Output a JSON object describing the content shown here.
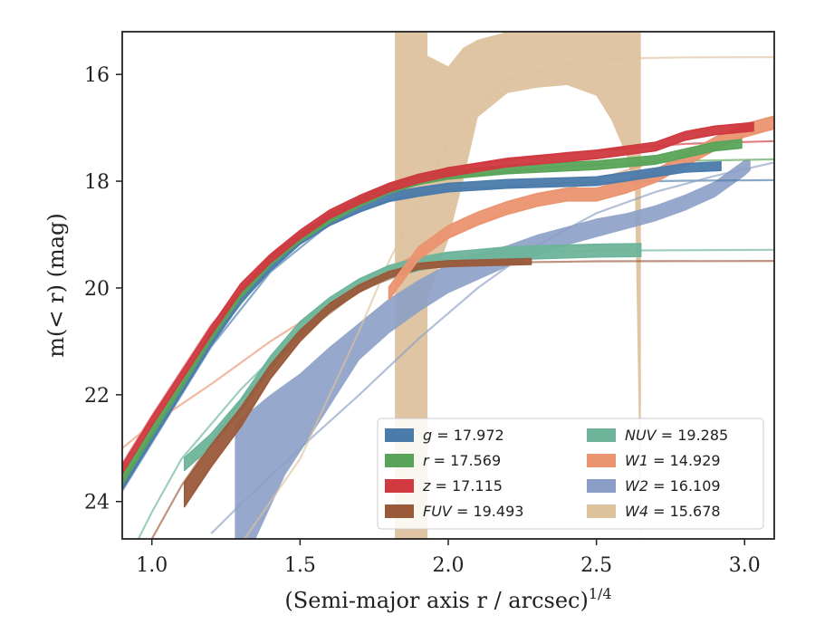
{
  "chart_data": {
    "type": "line",
    "xlabel": "(Semi-major axis r / arcsec)",
    "xlabel_superscript": "1/4",
    "ylabel": "m(< r) (mag)",
    "xlim": [
      0.9,
      3.1
    ],
    "ylim": [
      24.7,
      15.2
    ],
    "y_inverted": true,
    "xticks": [
      1.0,
      1.5,
      2.0,
      2.5,
      3.0
    ],
    "xtick_labels": [
      "1.0",
      "1.5",
      "2.0",
      "2.5",
      "3.0"
    ],
    "yticks": [
      16,
      18,
      20,
      22,
      24
    ],
    "ytick_labels": [
      "16",
      "18",
      "20",
      "22",
      "24"
    ],
    "grid": false,
    "legend_placement": "lower-right",
    "series": [
      {
        "key": "g",
        "name": "g",
        "value": "17.972",
        "color": "#4a7bab",
        "data": [
          [
            0.9,
            23.7
          ],
          [
            1.0,
            22.8
          ],
          [
            1.1,
            21.9
          ],
          [
            1.2,
            21.0
          ],
          [
            1.3,
            20.2
          ],
          [
            1.4,
            19.6
          ],
          [
            1.5,
            19.1
          ],
          [
            1.6,
            18.75
          ],
          [
            1.7,
            18.5
          ],
          [
            1.8,
            18.3
          ],
          [
            1.9,
            18.2
          ],
          [
            2.0,
            18.12
          ],
          [
            2.2,
            18.05
          ],
          [
            2.5,
            18.0
          ],
          [
            2.8,
            17.75
          ],
          [
            2.92,
            17.72
          ]
        ],
        "model": [
          [
            0.9,
            23.8
          ],
          [
            1.0,
            22.9
          ],
          [
            1.2,
            21.1
          ],
          [
            1.4,
            19.7
          ],
          [
            1.6,
            18.8
          ],
          [
            1.8,
            18.35
          ],
          [
            2.0,
            18.15
          ],
          [
            2.4,
            18.03
          ],
          [
            2.8,
            17.99
          ],
          [
            3.1,
            17.98
          ]
        ],
        "band": 0.08
      },
      {
        "key": "r",
        "name": "r",
        "value": "17.569",
        "color": "#5aa45a",
        "data": [
          [
            0.9,
            23.6
          ],
          [
            1.0,
            22.7
          ],
          [
            1.1,
            21.8
          ],
          [
            1.2,
            20.9
          ],
          [
            1.3,
            20.1
          ],
          [
            1.4,
            19.5
          ],
          [
            1.5,
            19.05
          ],
          [
            1.6,
            18.7
          ],
          [
            1.7,
            18.4
          ],
          [
            1.8,
            18.15
          ],
          [
            1.9,
            17.98
          ],
          [
            2.0,
            17.88
          ],
          [
            2.2,
            17.78
          ],
          [
            2.5,
            17.7
          ],
          [
            2.7,
            17.6
          ],
          [
            2.9,
            17.35
          ],
          [
            2.99,
            17.3
          ]
        ],
        "model": [
          [
            0.9,
            23.7
          ],
          [
            1.0,
            22.8
          ],
          [
            1.2,
            21.0
          ],
          [
            1.4,
            19.6
          ],
          [
            1.6,
            18.7
          ],
          [
            1.8,
            18.2
          ],
          [
            2.0,
            17.92
          ],
          [
            2.4,
            17.72
          ],
          [
            2.8,
            17.62
          ],
          [
            3.1,
            17.59
          ]
        ],
        "band": 0.08
      },
      {
        "key": "z",
        "name": "z",
        "value": "17.115",
        "color": "#d0393f",
        "data": [
          [
            0.9,
            23.4
          ],
          [
            1.0,
            22.5
          ],
          [
            1.1,
            21.65
          ],
          [
            1.2,
            20.8
          ],
          [
            1.3,
            20.0
          ],
          [
            1.4,
            19.45
          ],
          [
            1.5,
            19.0
          ],
          [
            1.6,
            18.62
          ],
          [
            1.7,
            18.35
          ],
          [
            1.8,
            18.12
          ],
          [
            1.9,
            17.95
          ],
          [
            2.0,
            17.83
          ],
          [
            2.2,
            17.65
          ],
          [
            2.5,
            17.5
          ],
          [
            2.7,
            17.35
          ],
          [
            2.8,
            17.15
          ],
          [
            2.9,
            17.05
          ],
          [
            3.03,
            16.98
          ]
        ],
        "model": [
          [
            0.9,
            23.3
          ],
          [
            1.0,
            22.4
          ],
          [
            1.2,
            20.7
          ],
          [
            1.4,
            19.4
          ],
          [
            1.6,
            18.6
          ],
          [
            1.8,
            18.05
          ],
          [
            2.0,
            17.75
          ],
          [
            2.4,
            17.47
          ],
          [
            2.8,
            17.3
          ],
          [
            3.1,
            17.25
          ]
        ],
        "band": 0.08
      },
      {
        "key": "FUV",
        "name": "FUV",
        "value": "19.493",
        "color": "#9a5a3a",
        "data": [
          [
            1.11,
            23.7
          ],
          [
            1.2,
            23.0
          ],
          [
            1.3,
            22.3
          ],
          [
            1.4,
            21.5
          ],
          [
            1.5,
            20.85
          ],
          [
            1.6,
            20.35
          ],
          [
            1.7,
            20.0
          ],
          [
            1.8,
            19.75
          ],
          [
            1.9,
            19.6
          ],
          [
            2.0,
            19.55
          ],
          [
            2.2,
            19.52
          ],
          [
            2.28,
            19.51
          ]
        ],
        "model": [
          [
            1.0,
            24.7
          ],
          [
            1.1,
            23.7
          ],
          [
            1.3,
            22.1
          ],
          [
            1.5,
            20.9
          ],
          [
            1.7,
            20.05
          ],
          [
            1.9,
            19.62
          ],
          [
            2.1,
            19.53
          ],
          [
            2.5,
            19.5
          ],
          [
            3.1,
            19.493
          ]
        ],
        "band_lo": [
          0.4,
          0.35,
          0.3,
          0.2,
          0.15,
          0.1,
          0.08,
          0.06,
          0.05,
          0.05,
          0.05,
          0.05
        ]
      },
      {
        "key": "NUV",
        "name": "NUV",
        "value": "19.285",
        "color": "#6db49a",
        "data": [
          [
            1.11,
            23.3
          ],
          [
            1.2,
            22.85
          ],
          [
            1.3,
            22.2
          ],
          [
            1.4,
            21.4
          ],
          [
            1.5,
            20.75
          ],
          [
            1.6,
            20.3
          ],
          [
            1.7,
            19.95
          ],
          [
            1.8,
            19.7
          ],
          [
            1.9,
            19.55
          ],
          [
            2.0,
            19.45
          ],
          [
            2.2,
            19.35
          ],
          [
            2.5,
            19.3
          ],
          [
            2.65,
            19.29
          ]
        ],
        "model": [
          [
            0.9,
            25.3
          ],
          [
            1.0,
            24.2
          ],
          [
            1.1,
            23.2
          ],
          [
            1.3,
            21.9
          ],
          [
            1.5,
            20.8
          ],
          [
            1.7,
            20.0
          ],
          [
            1.9,
            19.55
          ],
          [
            2.1,
            19.36
          ],
          [
            2.5,
            19.3
          ],
          [
            3.1,
            19.285
          ]
        ],
        "band": 0.12
      },
      {
        "key": "W1",
        "name": "W1",
        "value": "14.929",
        "color": "#eb9470",
        "data": [
          [
            1.8,
            20.1
          ],
          [
            1.9,
            19.35
          ],
          [
            2.0,
            18.95
          ],
          [
            2.1,
            18.7
          ],
          [
            2.2,
            18.5
          ],
          [
            2.3,
            18.35
          ],
          [
            2.4,
            18.25
          ],
          [
            2.5,
            18.25
          ],
          [
            2.6,
            18.1
          ],
          [
            2.7,
            17.9
          ],
          [
            2.8,
            17.6
          ],
          [
            2.9,
            17.3
          ],
          [
            3.0,
            17.05
          ],
          [
            3.1,
            16.9
          ]
        ],
        "model": [
          [
            0.9,
            23.0
          ],
          [
            1.0,
            22.55
          ],
          [
            1.2,
            21.8
          ],
          [
            1.4,
            21.0
          ],
          [
            1.6,
            20.3
          ],
          [
            1.8,
            19.65
          ],
          [
            2.0,
            19.05
          ],
          [
            2.2,
            18.55
          ],
          [
            2.4,
            18.15
          ],
          [
            2.6,
            17.8
          ],
          [
            2.8,
            17.45
          ],
          [
            3.0,
            17.15
          ],
          [
            3.1,
            17.0
          ]
        ],
        "band": 0.12
      },
      {
        "key": "W2",
        "name": "W2",
        "value": "16.109",
        "color": "#8b9ec5",
        "upper": [
          [
            1.28,
            22.55
          ],
          [
            1.3,
            22.45
          ],
          [
            1.4,
            22.0
          ],
          [
            1.5,
            21.6
          ],
          [
            1.6,
            21.1
          ],
          [
            1.7,
            20.65
          ],
          [
            1.8,
            20.2
          ],
          [
            1.9,
            19.85
          ],
          [
            2.0,
            19.55
          ],
          [
            2.1,
            19.35
          ],
          [
            2.2,
            19.2
          ],
          [
            2.3,
            19.0
          ],
          [
            2.4,
            18.85
          ],
          [
            2.5,
            18.7
          ],
          [
            2.6,
            18.6
          ],
          [
            2.7,
            18.45
          ],
          [
            2.8,
            18.25
          ],
          [
            2.9,
            18.0
          ],
          [
            3.0,
            17.6
          ],
          [
            3.02,
            17.6
          ]
        ],
        "lower": [
          [
            1.28,
            24.7
          ],
          [
            1.35,
            24.7
          ],
          [
            1.45,
            23.5
          ],
          [
            1.55,
            22.65
          ],
          [
            1.7,
            21.35
          ],
          [
            1.8,
            20.85
          ],
          [
            1.9,
            20.45
          ],
          [
            2.0,
            20.1
          ],
          [
            2.1,
            19.85
          ],
          [
            2.2,
            19.6
          ],
          [
            2.3,
            19.4
          ],
          [
            2.4,
            19.2
          ],
          [
            2.5,
            19.05
          ],
          [
            2.6,
            18.9
          ],
          [
            2.7,
            18.75
          ],
          [
            2.8,
            18.55
          ],
          [
            2.9,
            18.3
          ],
          [
            3.0,
            17.9
          ],
          [
            3.02,
            17.8
          ]
        ],
        "model": [
          [
            1.2,
            24.6
          ],
          [
            1.3,
            24.05
          ],
          [
            1.5,
            23.0
          ],
          [
            1.7,
            22.0
          ],
          [
            1.9,
            20.95
          ],
          [
            2.1,
            20.0
          ],
          [
            2.3,
            19.2
          ],
          [
            2.5,
            18.6
          ],
          [
            2.7,
            18.2
          ],
          [
            2.9,
            17.9
          ],
          [
            3.1,
            17.65
          ]
        ]
      },
      {
        "key": "W4",
        "name": "W4",
        "value": "15.678",
        "color": "#ddc29e",
        "upper": [
          [
            1.82,
            15.2
          ],
          [
            1.93,
            15.2
          ],
          [
            1.93,
            15.65
          ],
          [
            2.0,
            15.85
          ],
          [
            2.05,
            15.5
          ],
          [
            2.1,
            15.35
          ],
          [
            2.2,
            15.2
          ],
          [
            2.65,
            15.2
          ]
        ],
        "lower": [
          [
            1.82,
            24.7
          ],
          [
            1.93,
            24.7
          ],
          [
            1.93,
            20.2
          ],
          [
            2.0,
            19.1
          ],
          [
            2.05,
            18.0
          ],
          [
            2.1,
            16.8
          ],
          [
            2.2,
            16.35
          ],
          [
            2.3,
            16.25
          ],
          [
            2.4,
            16.2
          ],
          [
            2.5,
            16.4
          ],
          [
            2.55,
            16.85
          ],
          [
            2.6,
            17.5
          ],
          [
            2.63,
            18.2
          ],
          [
            2.65,
            24.7
          ]
        ],
        "model": [
          [
            1.3,
            24.8
          ],
          [
            1.5,
            23.2
          ],
          [
            1.7,
            20.8
          ],
          [
            1.8,
            19.5
          ],
          [
            1.9,
            18.4
          ],
          [
            2.0,
            17.3
          ],
          [
            2.1,
            16.6
          ],
          [
            2.2,
            16.1
          ],
          [
            2.4,
            15.8
          ],
          [
            2.6,
            15.7
          ],
          [
            2.8,
            15.68
          ],
          [
            3.1,
            15.678
          ]
        ]
      }
    ]
  }
}
